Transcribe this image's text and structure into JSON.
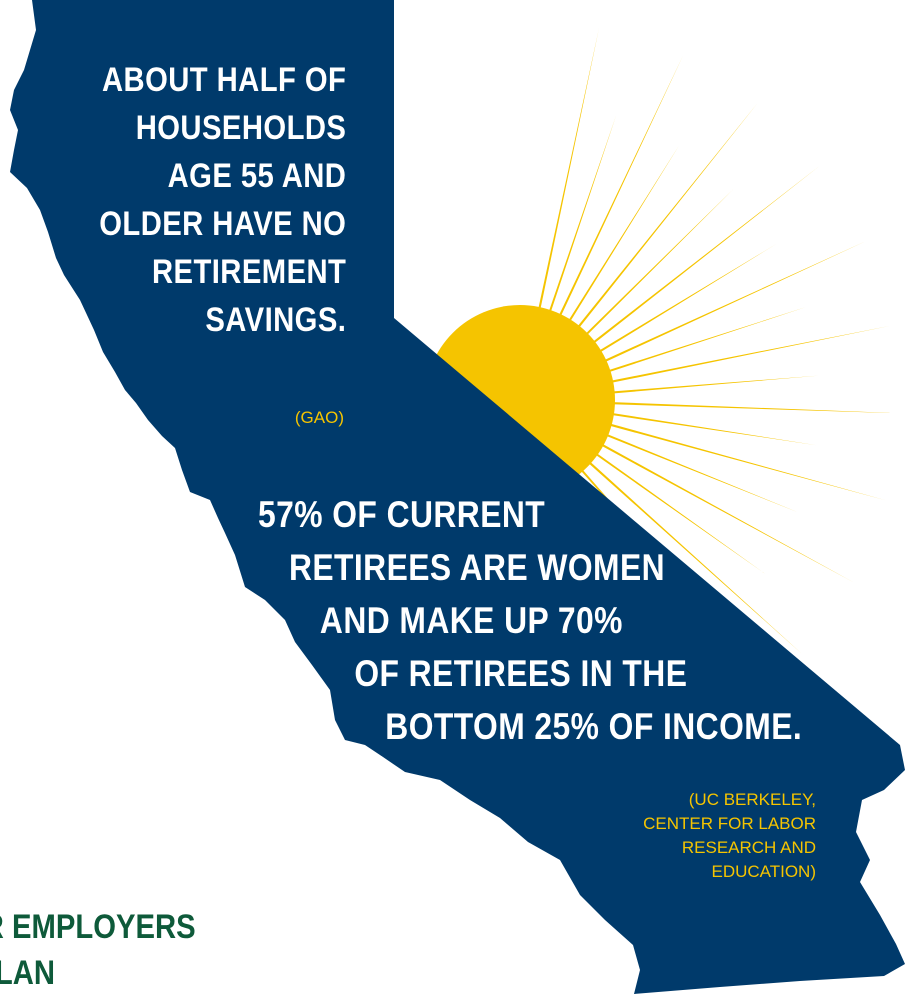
{
  "colors": {
    "state_fill": "#003a6b",
    "sun": "#f5c400",
    "stat_text": "#ffffff",
    "source_text": "#f5c400",
    "footer_text": "#0e5a3a",
    "background": "#ffffff"
  },
  "stat1": {
    "lines": [
      "ABOUT HALF OF",
      "HOUSEHOLDS",
      "AGE 55 AND",
      "OLDER HAVE NO",
      "RETIREMENT",
      "SAVINGS."
    ],
    "source": "(GAO)"
  },
  "stat2": {
    "lines": [
      "57% OF CURRENT",
      "RETIREES ARE WOMEN",
      "AND MAKE UP 70%",
      "OF RETIREES IN THE",
      "BOTTOM 25% OF INCOME."
    ],
    "source_lines": [
      "(UC BERKELEY,",
      "CENTER FOR LABOR",
      "RESEARCH AND",
      "EDUCATION)"
    ]
  },
  "footer": {
    "lines": [
      "R EMPLOYERS",
      "LAN"
    ]
  }
}
